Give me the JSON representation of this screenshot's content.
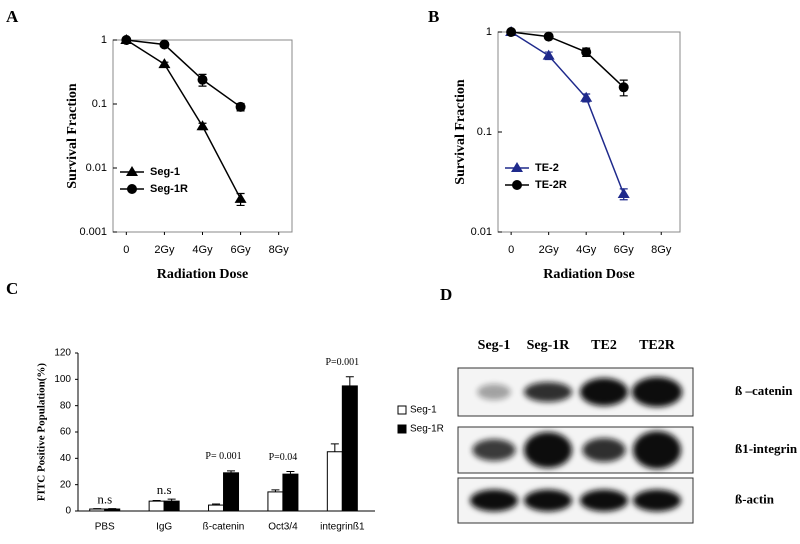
{
  "chart_data": [
    {
      "type": "line",
      "panel": "A",
      "x_label": "Radiation Dose",
      "y_label": "Survival Fraction",
      "x": [
        0,
        2,
        4,
        6
      ],
      "log_y": true,
      "ylim": [
        0.001,
        1
      ],
      "yticks": [
        0.001,
        0.01,
        0.1,
        1
      ],
      "xlim": [
        -0.7,
        8.7
      ],
      "xticks": [
        0,
        {
          "value": 2,
          "label": "2Gy"
        },
        {
          "value": 4,
          "label": "4Gy"
        },
        {
          "value": 6,
          "label": "6Gy"
        },
        {
          "value": 8,
          "label": "8Gy"
        }
      ],
      "legend": "lower left",
      "series": [
        {
          "name": "Seg-1",
          "color": "#000000",
          "marker": "triangle",
          "values": [
            1,
            0.42,
            0.045,
            0.0033
          ],
          "errors": [
            0.05,
            0.03,
            0.005,
            0.0007
          ]
        },
        {
          "name": "Seg-1R",
          "color": "#000000",
          "marker": "circle",
          "values": [
            1,
            0.85,
            0.24,
            0.09
          ],
          "errors": [
            0.05,
            0.04,
            0.05,
            0.012
          ]
        }
      ]
    },
    {
      "type": "line",
      "panel": "B",
      "x_label": "Radiation Dose",
      "y_label": "Survival Fraction",
      "x": [
        0,
        2,
        4,
        6
      ],
      "log_y": true,
      "ylim": [
        0.01,
        1
      ],
      "yticks": [
        0.01,
        0.1,
        1
      ],
      "xlim": [
        -0.7,
        9
      ],
      "xticks": [
        0,
        {
          "value": 2,
          "label": "2Gy"
        },
        {
          "value": 4,
          "label": "4Gy"
        },
        {
          "value": 6,
          "label": "6Gy"
        },
        {
          "value": 8,
          "label": "8Gy"
        }
      ],
      "legend": "center left",
      "series": [
        {
          "name": "TE-2",
          "color": "#1f2a8c",
          "marker": "triangle",
          "values": [
            1,
            0.58,
            0.22,
            0.024
          ],
          "errors": [
            0.04,
            0.05,
            0.02,
            0.003
          ]
        },
        {
          "name": "TE-2R",
          "color": "#000000",
          "marker": "circle",
          "values": [
            1,
            0.9,
            0.63,
            0.28
          ],
          "errors": [
            0.04,
            0.05,
            0.06,
            0.05
          ]
        }
      ]
    },
    {
      "type": "bar",
      "panel": "C",
      "y_label": "FITC Positive Population(%)",
      "categories": [
        "PBS",
        "IgG",
        "ß-catenin",
        "Oct3/4",
        "integrinß1"
      ],
      "annotations": [
        "n.s",
        "n.s",
        "P= 0.001",
        "P=0.04",
        "P=0.001"
      ],
      "ylim": [
        0,
        120
      ],
      "yticks": [
        0,
        20,
        40,
        60,
        80,
        100,
        120
      ],
      "legend": "right",
      "series": [
        {
          "name": "Seg-1",
          "color": "#ffffff",
          "values": [
            1.5,
            7.5,
            4.5,
            14.5,
            45
          ],
          "errors": [
            0.3,
            0.5,
            0.8,
            1.5,
            6
          ]
        },
        {
          "name": "Seg-1R",
          "color": "#000000",
          "values": [
            1.5,
            7.5,
            29,
            28,
            95
          ],
          "errors": [
            0.3,
            1.5,
            1.5,
            2,
            7
          ]
        }
      ]
    }
  ],
  "blot": {
    "panel": "D",
    "lanes": [
      "Seg-1",
      "Seg-1R",
      "TE2",
      "TE2R"
    ],
    "rows": [
      "ß –catenin",
      "ß1-integrin",
      "ß-actin"
    ]
  }
}
